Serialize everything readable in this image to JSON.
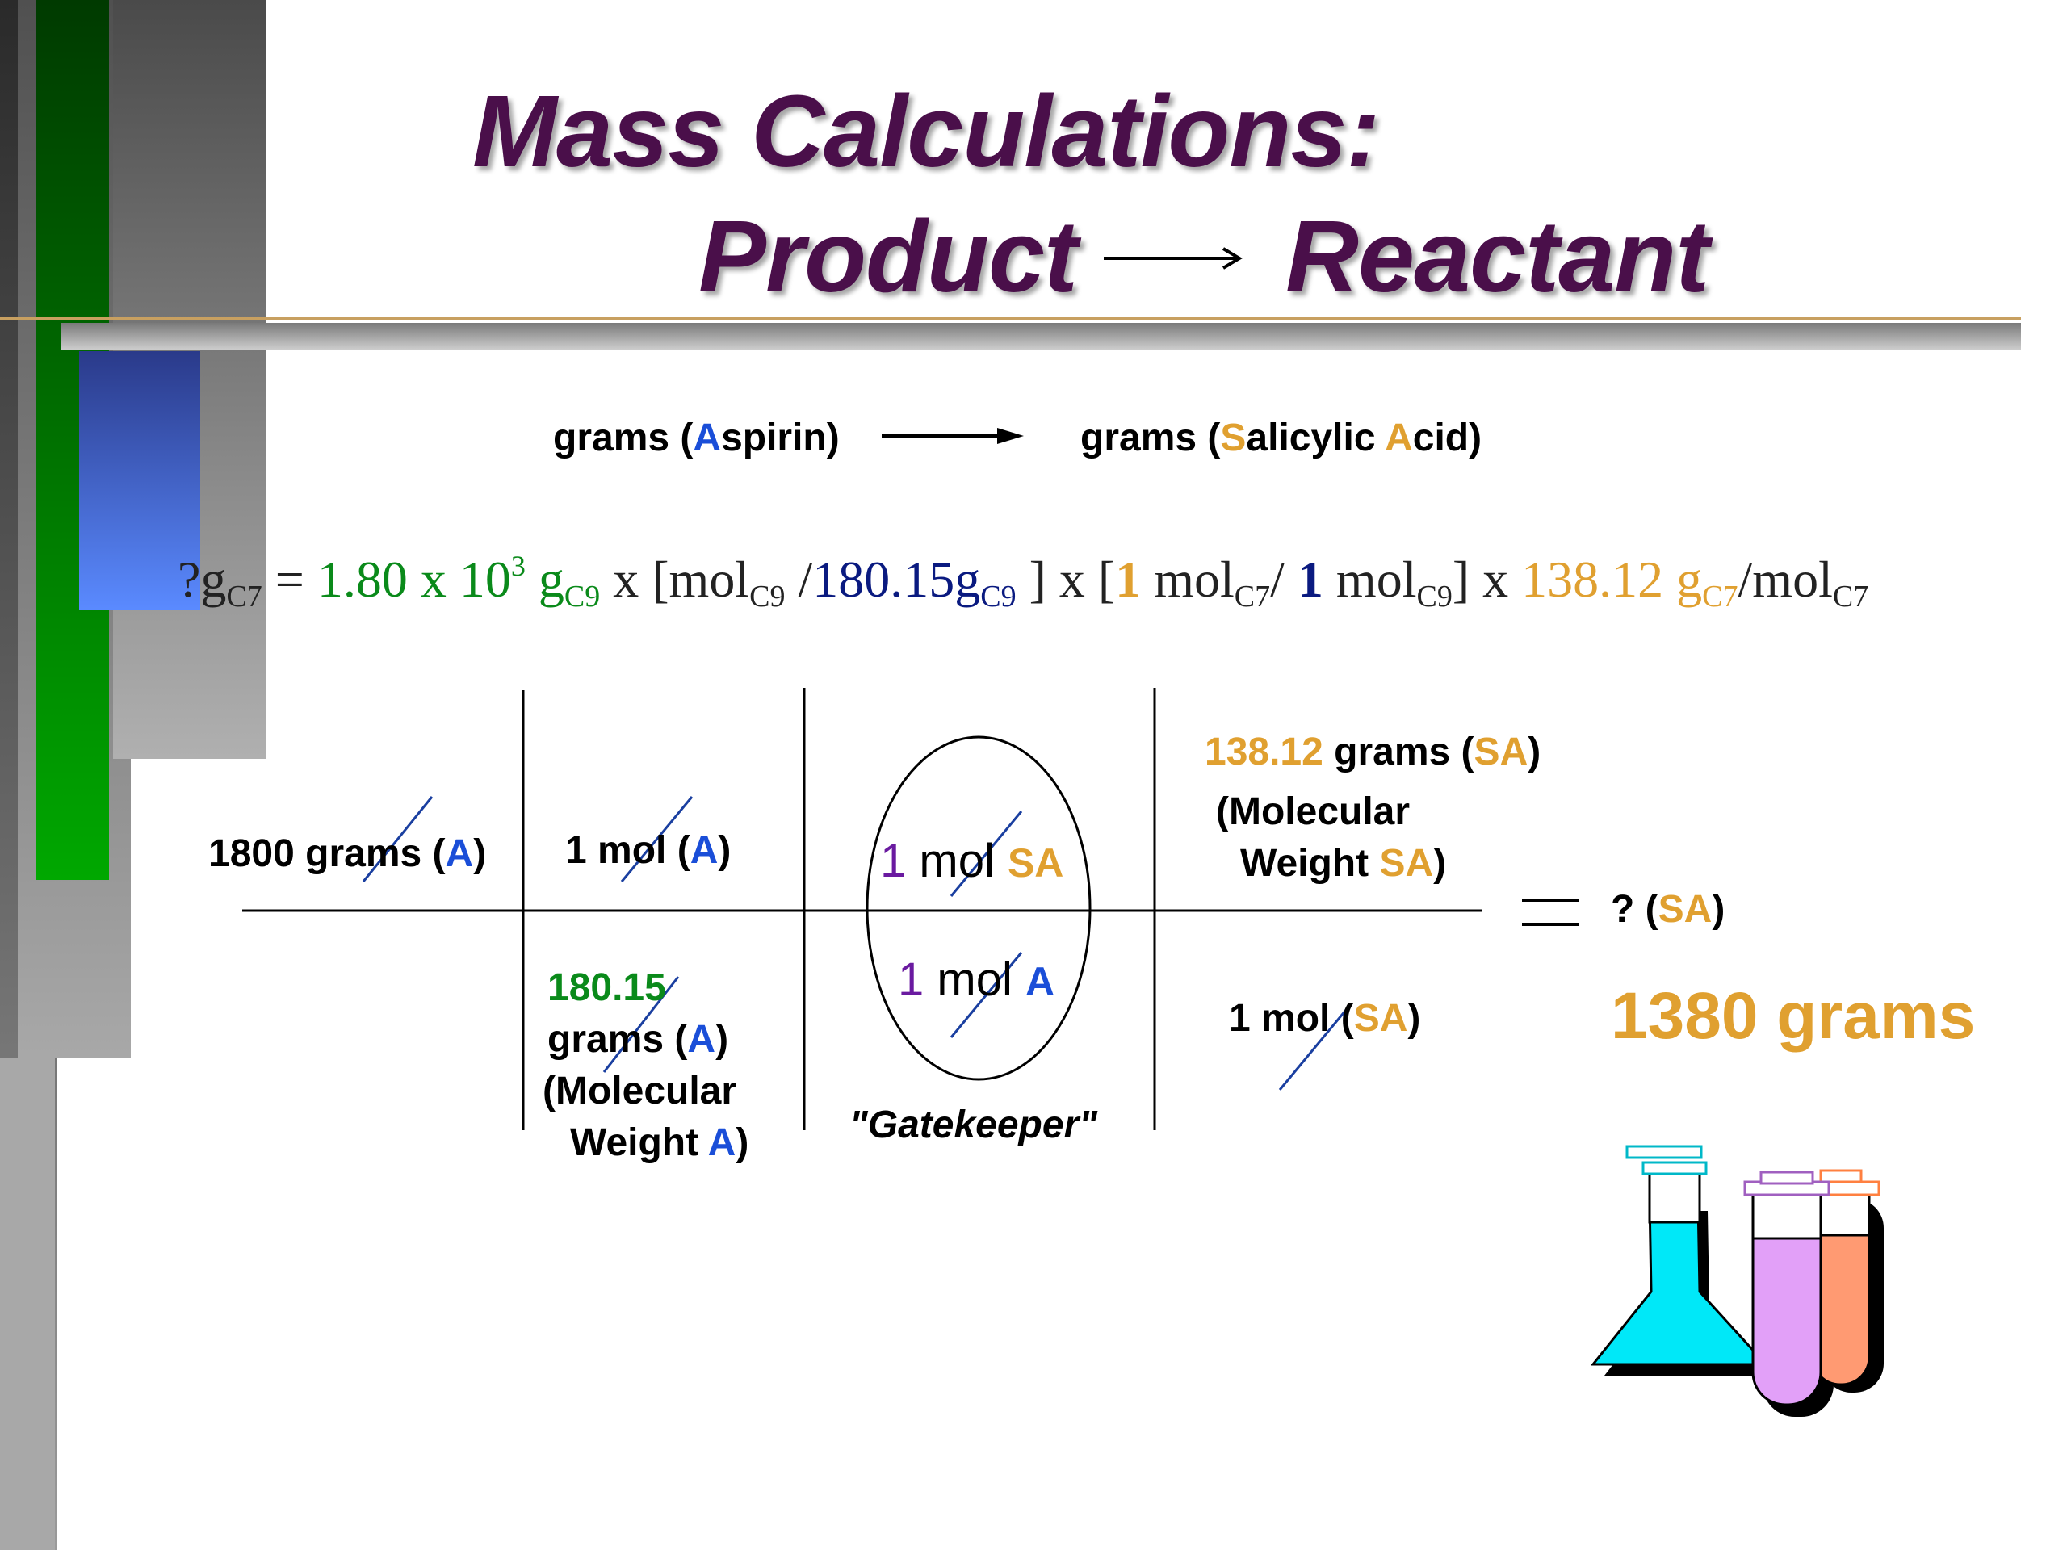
{
  "title": {
    "line1": "Mass Calculations:",
    "line2_left": "Product",
    "line2_right": "Reactant"
  },
  "conversion": {
    "from": {
      "prefix": "grams (",
      "a": "A",
      "rest": "spirin)"
    },
    "to": {
      "prefix": "grams (",
      "s": "S",
      "mid": "alicylic ",
      "a": "A",
      "rest": "cid)"
    }
  },
  "equation": {
    "lhs_q": "?g",
    "lhs_sub": "C7",
    "equals": " = ",
    "given_coeff": "1.80 x 10",
    "given_exp": "3",
    "given_unit": " g",
    "given_sub": "C9",
    "x1": " x  [mol",
    "mol_sub1": "C9",
    "slash1": " /",
    "mw_a": "180.15g",
    "mw_a_sub": "C9",
    "close1": " ] x [",
    "one_a": "1",
    "mol2": " mol",
    "mol2_sub": "C7",
    "slash2": "/ ",
    "one_b": "1",
    "mol3": " mol",
    "mol3_sub": "C9",
    "close2": "] x ",
    "mw_sa": "138.12 g",
    "mw_sa_sub": "C7",
    "slash3": "/mol",
    "mol4_sub": "C7"
  },
  "table": {
    "col1_top": {
      "text": "1800 grams (",
      "a": "A",
      "close": ")"
    },
    "col2_top": {
      "text": "1 mol (",
      "a": "A",
      "close": ")"
    },
    "col2_bottom": {
      "value": "180.15",
      "line2": "grams (",
      "a": "A",
      "close": ")",
      "line3": "(Molecular",
      "line4": "Weight ",
      "a2": "A",
      "close2": ")"
    },
    "gatekeeper_top": {
      "num": "1",
      "unit": " mol ",
      "label": "SA"
    },
    "gatekeeper_bottom": {
      "num": "1",
      "unit": " mol ",
      "label": "A"
    },
    "gatekeeper_caption": "\"Gatekeeper\"",
    "col4_top": {
      "value": "138.12",
      "text": " grams (",
      "sa": "SA",
      "close": ")",
      "line2": "(Molecular",
      "line3": "Weight ",
      "sa2": "SA",
      "close2": ")"
    },
    "col4_bottom": {
      "text": "1 mol (",
      "sa": "SA",
      "close": ")"
    }
  },
  "result": {
    "question": "? (",
    "sa": "SA",
    "close": ")",
    "answer": "1380 grams"
  },
  "colors": {
    "title": "#4a0f4a",
    "aspirin": "#1a4ed8",
    "salicylic": "#e0a030",
    "given": "#0a8a1a",
    "mw_aspirin": "#0a1a80",
    "mol_ratio": "#6a1aa0"
  },
  "icons": [
    "lab-glassware-icon"
  ]
}
